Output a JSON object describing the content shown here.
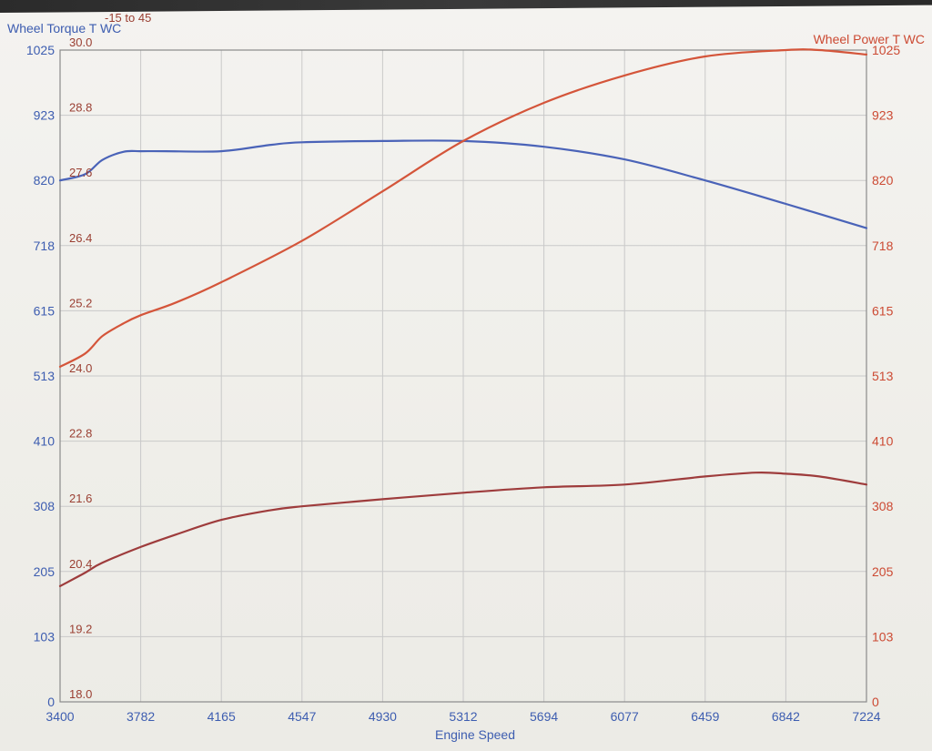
{
  "chart_data": {
    "type": "line",
    "xlabel": "Engine Speed",
    "x_ticks": [
      "3400",
      "3782",
      "4165",
      "4547",
      "4930",
      "5312",
      "5694",
      "6077",
      "6459",
      "6842",
      "7224"
    ],
    "xlim": [
      3400,
      7224
    ],
    "left_axis": {
      "title": "Wheel Torque T WC",
      "ticks": [
        "0",
        "103",
        "205",
        "308",
        "410",
        "513",
        "615",
        "718",
        "820",
        "923",
        "1025"
      ],
      "ylim": [
        0,
        1025
      ],
      "color": "#3d5db0"
    },
    "right_axis": {
      "title": "Wheel Power T WC",
      "ticks": [
        "0",
        "103",
        "205",
        "308",
        "410",
        "513",
        "615",
        "718",
        "820",
        "923",
        "1025"
      ],
      "ylim": [
        0,
        1025
      ],
      "color": "#cc4a33"
    },
    "inner_axis": {
      "range_label": "-15 to 45",
      "ticks": [
        "18.0",
        "19.2",
        "20.4",
        "21.6",
        "22.8",
        "24.0",
        "25.2",
        "26.4",
        "27.6",
        "28.8",
        "30.0"
      ],
      "ylim": [
        18.0,
        30.0
      ],
      "color": "#9a3f32"
    },
    "series": [
      {
        "axis": "left",
        "color": "#4a63b8",
        "x": [
          3400,
          3520,
          3600,
          3700,
          3782,
          3900,
          4165,
          4400,
          4547,
          4930,
          5312,
          5694,
          6077,
          6459,
          6842,
          7224
        ],
        "y": [
          820,
          830,
          852,
          865,
          866,
          866,
          866,
          876,
          880,
          882,
          882,
          873,
          853,
          820,
          783,
          745
        ]
      },
      {
        "axis": "right",
        "color": "#d4553a",
        "x": [
          3400,
          3520,
          3600,
          3700,
          3782,
          3950,
          4165,
          4547,
          4930,
          5312,
          5694,
          6077,
          6459,
          6842,
          7000,
          7224
        ],
        "y": [
          527,
          548,
          575,
          595,
          608,
          628,
          660,
          725,
          803,
          882,
          942,
          985,
          1015,
          1025,
          1025,
          1018
        ]
      },
      {
        "axis": "inner",
        "color": "#9e3c3c",
        "x": [
          3400,
          3520,
          3600,
          3782,
          3950,
          4165,
          4400,
          4547,
          4930,
          5312,
          5694,
          6077,
          6459,
          6700,
          6842,
          7000,
          7224
        ],
        "y": [
          20.13,
          20.38,
          20.56,
          20.85,
          21.08,
          21.35,
          21.53,
          21.6,
          21.73,
          21.85,
          21.95,
          22.0,
          22.15,
          22.22,
          22.2,
          22.15,
          22.0
        ]
      }
    ]
  }
}
